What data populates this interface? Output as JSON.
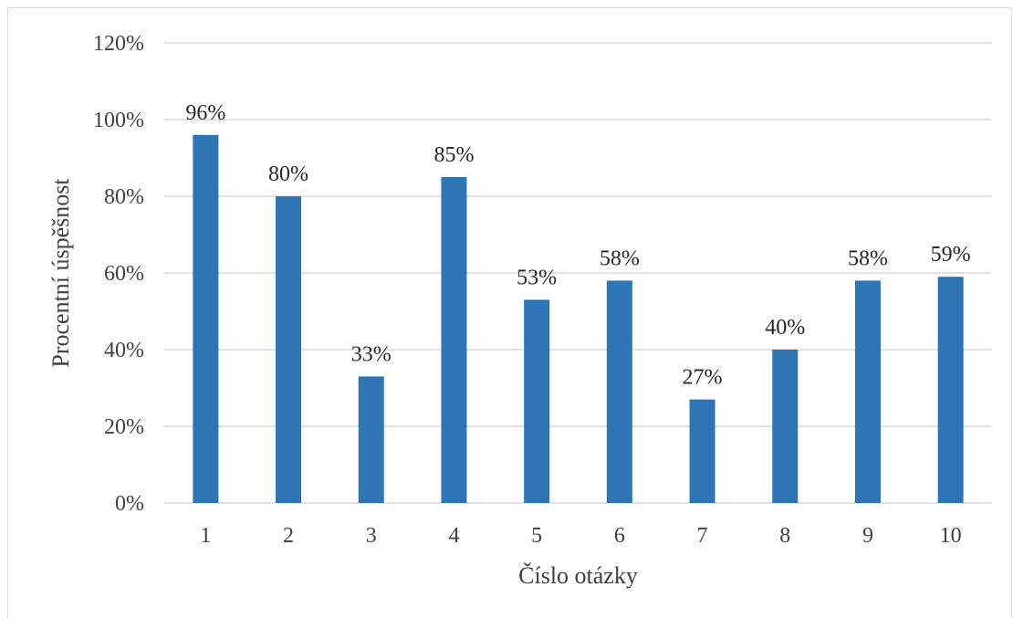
{
  "chart_data": {
    "type": "bar",
    "categories": [
      "1",
      "2",
      "3",
      "4",
      "5",
      "6",
      "7",
      "8",
      "9",
      "10"
    ],
    "values": [
      96,
      80,
      33,
      85,
      53,
      58,
      27,
      40,
      58,
      59
    ],
    "data_labels": [
      "96%",
      "80%",
      "33%",
      "85%",
      "53%",
      "58%",
      "27%",
      "40%",
      "58%",
      "59%"
    ],
    "y_ticks": [
      0,
      20,
      40,
      60,
      80,
      100,
      120
    ],
    "y_tick_labels": [
      "0%",
      "20%",
      "40%",
      "60%",
      "80%",
      "100%",
      "120%"
    ],
    "ylim": [
      0,
      120
    ],
    "xlabel": "Číslo otázky",
    "ylabel": "Procentní úspěšnost",
    "grid": true,
    "bar_color": "#2e75b6",
    "grid_color": "#d9d9d9"
  }
}
